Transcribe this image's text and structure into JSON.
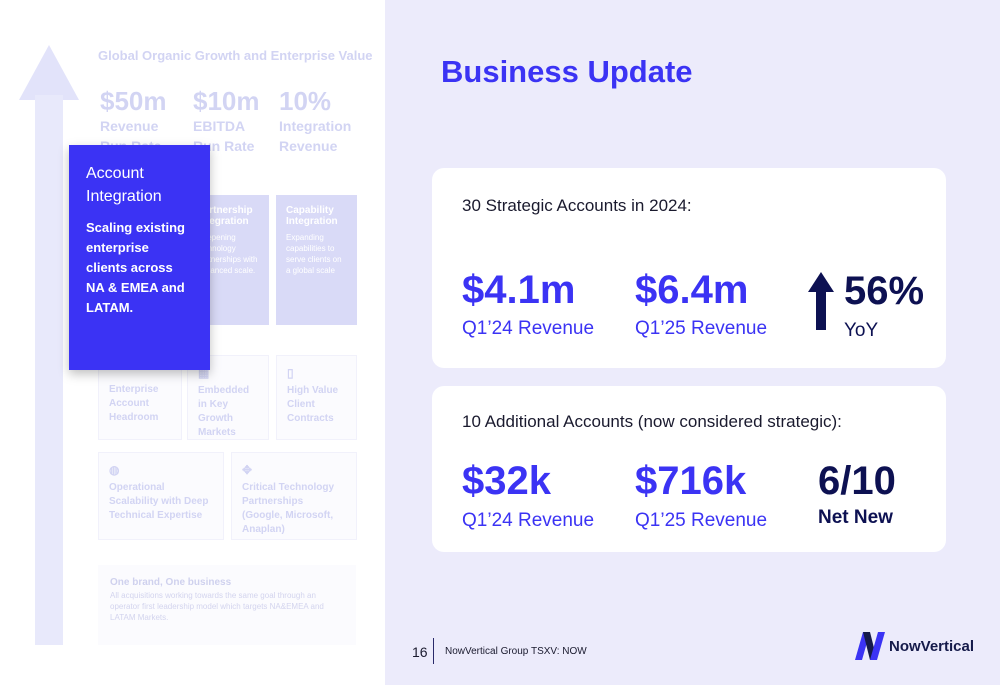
{
  "left": {
    "section_title": "Global Organic Growth and Enterprise Value",
    "stats": [
      {
        "value": "$50m",
        "label": "Revenue",
        "label2": "Run Rate"
      },
      {
        "value": "$10m",
        "label": "EBITDA",
        "label2": "Run Rate"
      },
      {
        "value": "10%",
        "label": "Integration",
        "label2": "Revenue"
      }
    ],
    "cards": [
      {
        "title": "Partnership Integration",
        "desc": "Deepening technology partnerships with enhanced scale."
      },
      {
        "title": "Capability Integration",
        "desc": "Expanding capabilities to serve clients on a global scale"
      }
    ],
    "mini": [
      {
        "label": "Enterprise Account Headroom"
      },
      {
        "label": "Embedded in Key Growth Markets"
      },
      {
        "label": "High Value Client Contracts"
      },
      {
        "label": "Operational Scalability with Deep Technical Expertise"
      },
      {
        "label": "Critical Technology Partnerships (Google, Microsoft, Anaplan)"
      }
    ],
    "brand": {
      "heading": "One brand, One business",
      "text": "All acquisitions working towards the same goal through an operator first leadership model which targets NA&EMEA and LATAM Markets."
    },
    "focus": {
      "title": "Account Integration",
      "desc": "Scaling existing enterprise clients across NA & EMEA and LATAM."
    }
  },
  "right": {
    "title": "Business Update",
    "panel1": {
      "heading": "30 Strategic Accounts in 2024:",
      "m1_value": "$4.1m",
      "m1_label": "Q1’24 Revenue",
      "m2_value": "$6.4m",
      "m2_label": "Q1’25 Revenue",
      "m3_value": "56%",
      "m3_label": "YoY"
    },
    "panel2": {
      "heading": "10 Additional Accounts (now considered strategic):",
      "m1_value": "$32k",
      "m1_label": "Q1’24 Revenue",
      "m2_value": "$716k",
      "m2_label": "Q1’25 Revenue",
      "m3_value": "6/10",
      "m3_label": "Net New"
    }
  },
  "footer": {
    "page": "16",
    "company": "NowVertical Group   TSXV: NOW",
    "logo_text": "NowVertical"
  },
  "colors": {
    "accent": "#3b33f4",
    "navy": "#0d1152",
    "bg": "#ecebfb"
  }
}
